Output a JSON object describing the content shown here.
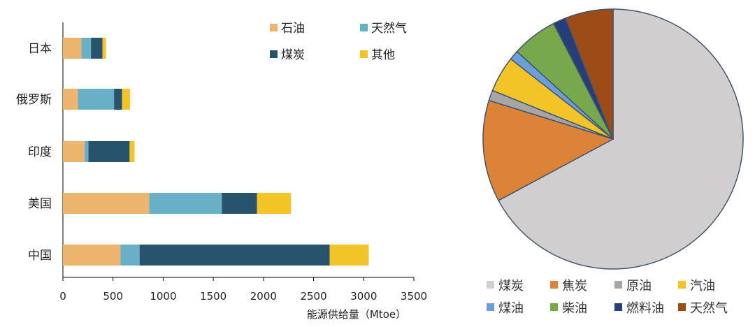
{
  "chart_data": [
    {
      "type": "bar",
      "orientation": "horizontal",
      "stacked": true,
      "categories": [
        "日本",
        "俄罗斯",
        "印度",
        "美国",
        "中国"
      ],
      "series": [
        {
          "name": "石油",
          "color": "#EDB46E",
          "values": [
            185,
            150,
            215,
            860,
            575
          ]
        },
        {
          "name": "天然气",
          "color": "#6AAFC8",
          "values": [
            95,
            360,
            40,
            725,
            190
          ]
        },
        {
          "name": "煤炭",
          "color": "#27536C",
          "values": [
            115,
            80,
            410,
            350,
            1895
          ]
        },
        {
          "name": "其他",
          "color": "#F3C427",
          "values": [
            35,
            80,
            50,
            340,
            390
          ]
        }
      ],
      "xlim": [
        0,
        3500
      ],
      "xticks": [
        "0",
        "500",
        "1000",
        "1500",
        "2000",
        "2500",
        "3000",
        "3500"
      ],
      "xlabel": "能源供给量（Mtoe）",
      "grid": false,
      "legend_position": "top-right"
    },
    {
      "type": "pie",
      "labels": [
        "煤炭",
        "焦炭",
        "原油",
        "汽油",
        "煤油",
        "柴油",
        "燃料油",
        "天然气"
      ],
      "values": [
        67.5,
        12.7,
        1.3,
        4.5,
        1.2,
        5.7,
        1.6,
        6.0
      ],
      "colors": [
        "#D0CECE",
        "#DD8338",
        "#A6A6A6",
        "#F3C427",
        "#6A9FD9",
        "#77A94C",
        "#253E79",
        "#9E4C17"
      ],
      "legend_position": "bottom"
    }
  ]
}
